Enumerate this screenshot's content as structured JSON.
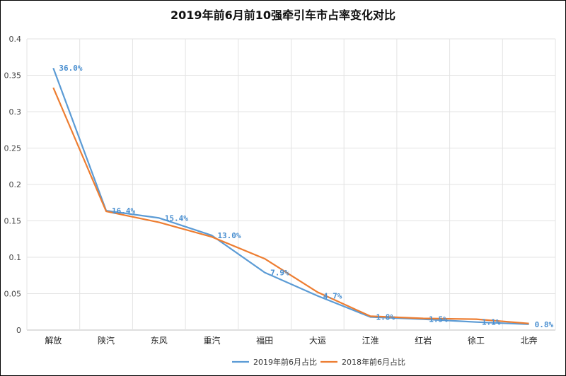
{
  "chart_data": {
    "type": "line",
    "title": "2019年前6月前10强牵引车市占率变化对比",
    "categories": [
      "解放",
      "陕汽",
      "东风",
      "重汽",
      "福田",
      "大运",
      "江淮",
      "红岩",
      "徐工",
      "北奔"
    ],
    "ylim": [
      0,
      0.4
    ],
    "yticks": [
      "0",
      "0.05",
      "0.1",
      "0.15",
      "0.2",
      "0.25",
      "0.3",
      "0.35",
      "0.4"
    ],
    "grid": true,
    "legend_position": "bottom",
    "series": [
      {
        "name": "2019年前6月占比",
        "color": "#5b9bd5",
        "values": [
          0.36,
          0.164,
          0.154,
          0.13,
          0.079,
          0.047,
          0.018,
          0.015,
          0.011,
          0.008
        ],
        "data_labels": [
          "36.0%",
          "16.4%",
          "15.4%",
          "13.0%",
          "7.9%",
          "4.7%",
          "1.8%",
          "1.5%",
          "1.1%",
          "0.8%"
        ]
      },
      {
        "name": "2018年前6月占比",
        "color": "#ed7d31",
        "values": [
          0.333,
          0.163,
          0.148,
          0.128,
          0.098,
          0.052,
          0.019,
          0.016,
          0.015,
          0.009
        ]
      }
    ]
  }
}
